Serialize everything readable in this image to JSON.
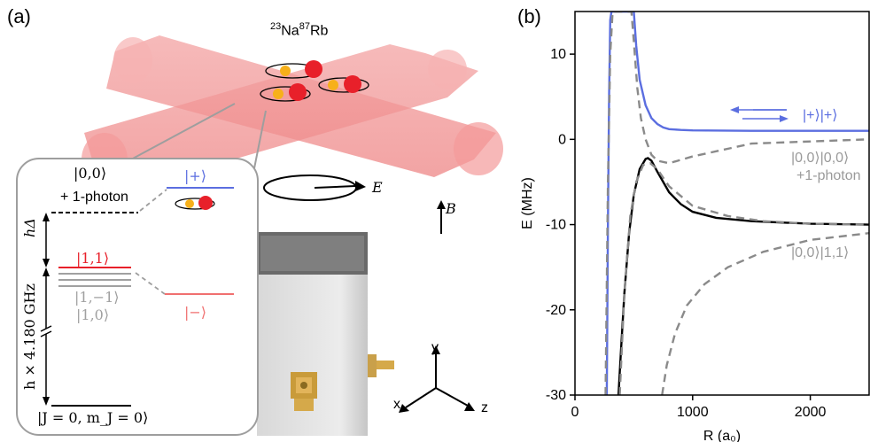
{
  "panel_a": {
    "label": "(a)",
    "molecule": {
      "pre": "23",
      "na": "Na",
      "mid": "87",
      "rb": "Rb"
    },
    "e_field_label": "E",
    "b_field_label": "B",
    "axes": {
      "x": "x",
      "y": "y",
      "z": "z"
    },
    "inset": {
      "top_state": "|0,0⟩",
      "photon": "+ 1-photon",
      "plus_state": "|+⟩",
      "minus_state": "|−⟩",
      "delta": "hΔ",
      "state_11": "|1,1⟩",
      "state_1m1": "|1,−1⟩",
      "state_10": "|1,0⟩",
      "freq": "h × 4.180 GHz",
      "ground": "|J = 0, m_J = 0⟩"
    },
    "colors": {
      "beam": "#f08a8a",
      "plus": "#5b6ee0",
      "red": "#e8202a",
      "minus": "#f07070",
      "gray": "#a0a0a0"
    }
  },
  "panel_b": {
    "label": "(b)",
    "annotations": {
      "plus_plus": "|+⟩|+⟩",
      "zero_zero": "|0,0⟩|0,0⟩",
      "photon": "+1-photon",
      "zero_11": "|0,0⟩|1,1⟩"
    }
  },
  "chart_data": {
    "type": "line",
    "xlabel": "R (a₀)",
    "ylabel": "E (MHz)",
    "xlim": [
      0,
      2500
    ],
    "ylim": [
      -30,
      15
    ],
    "xticks": [
      0,
      1000,
      2000
    ],
    "yticks": [
      10,
      0,
      -10,
      -20,
      -30
    ],
    "grid": false,
    "series": [
      {
        "color": "#5b6ee0",
        "style": "solid",
        "x": [
          270,
          280,
          290,
          300,
          310,
          500,
          520,
          550,
          600,
          650,
          700,
          750,
          800,
          900,
          1000,
          1500,
          2000,
          2500
        ],
        "y": [
          -30,
          -10,
          5,
          14,
          15,
          15,
          11,
          7,
          4,
          2.5,
          1.8,
          1.4,
          1.2,
          1.1,
          1.05,
          1.0,
          1.0,
          1.0
        ]
      },
      {
        "color": "#000000",
        "style": "solid",
        "x": [
          370,
          390,
          420,
          460,
          500,
          550,
          600,
          620,
          650,
          700,
          800,
          900,
          1000,
          1200,
          1500,
          2000,
          2500
        ],
        "y": [
          -30,
          -25,
          -18,
          -11,
          -6.5,
          -3.5,
          -2.3,
          -2.2,
          -2.5,
          -3.8,
          -6.2,
          -7.6,
          -8.5,
          -9.2,
          -9.6,
          -9.9,
          -10.0
        ]
      },
      {
        "color": "#8a8a8a",
        "style": "dashed",
        "x": [
          260,
          280,
          300,
          320,
          480,
          500,
          530,
          560,
          600,
          650,
          700,
          800,
          1000,
          1500,
          2500
        ],
        "y": [
          -30,
          -5,
          10,
          15,
          15,
          11.5,
          6,
          2.5,
          0,
          -1.8,
          -2.5,
          -2.8,
          -2.0,
          -0.5,
          0.0
        ]
      },
      {
        "color": "#8a8a8a",
        "style": "dashed",
        "x": [
          380,
          420,
          470,
          520,
          580,
          640,
          700,
          800,
          1000,
          1300,
          1600,
          2000,
          2500
        ],
        "y": [
          -30,
          -18,
          -9,
          -5,
          -3.0,
          -2.8,
          -3.5,
          -5.5,
          -7.8,
          -9.0,
          -9.6,
          -9.9,
          -10.0
        ]
      },
      {
        "color": "#8a8a8a",
        "style": "dashed",
        "x": [
          740,
          780,
          850,
          950,
          1100,
          1300,
          1600,
          2000,
          2500
        ],
        "y": [
          -30,
          -26.5,
          -22.8,
          -19.5,
          -17.0,
          -15.0,
          -13.2,
          -11.8,
          -11.0
        ]
      }
    ]
  }
}
